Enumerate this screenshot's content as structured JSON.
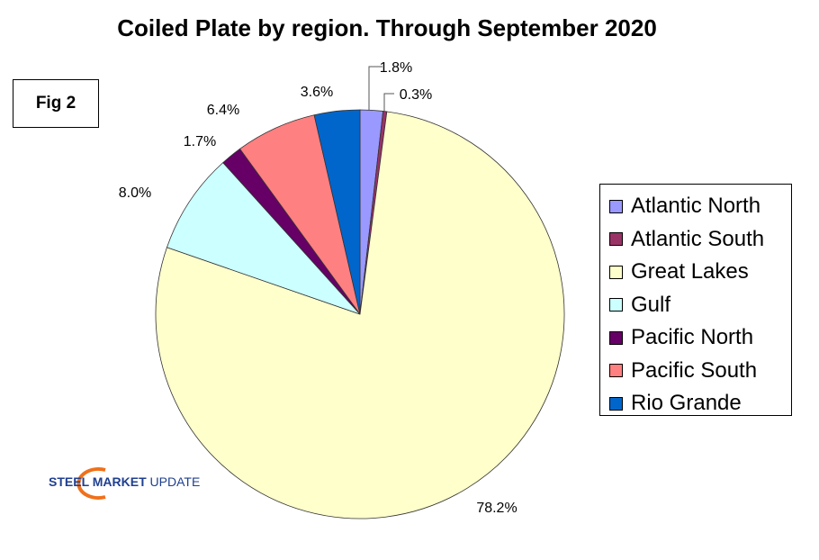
{
  "fig_label": "Fig 2",
  "logo": {
    "bold": "STEEL MARKET",
    "light": "UPDATE"
  },
  "chart_data": {
    "type": "pie",
    "title": "Coiled Plate by region. Through September 2020",
    "categories": [
      "Atlantic North",
      "Atlantic South",
      "Great Lakes",
      "Gulf",
      "Pacific North",
      "Pacific South",
      "Rio Grande"
    ],
    "values": [
      1.8,
      0.3,
      78.2,
      8.0,
      1.7,
      6.4,
      3.6
    ],
    "labels": [
      "1.8%",
      "0.3%",
      "78.2%",
      "8.0%",
      "1.7%",
      "6.4%",
      "3.6%"
    ],
    "colors": [
      "#9999FF",
      "#993366",
      "#FFFFCC",
      "#CCFFFF",
      "#660066",
      "#FF8080",
      "#0066CC"
    ],
    "legend_position": "right"
  }
}
